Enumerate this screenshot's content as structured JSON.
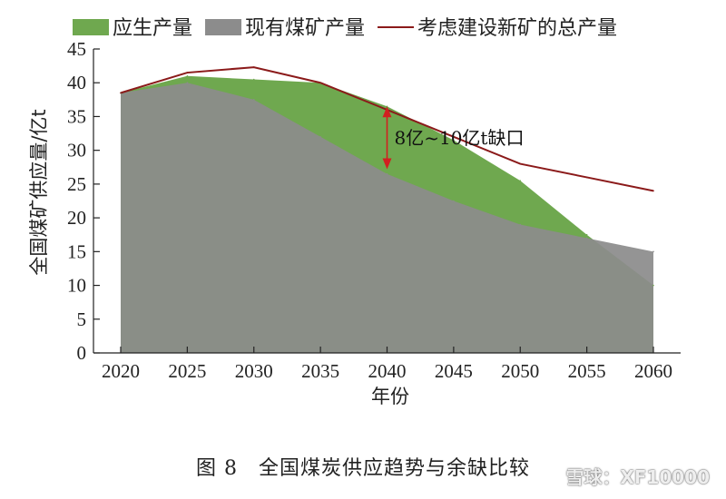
{
  "colors": {
    "required": "#6fa84f",
    "existing": "#8c8c8c",
    "total": "#8b1a1a",
    "annotation": "#d12020",
    "axis": "#222222"
  },
  "chart_data": {
    "type": "area",
    "xlabel": "年份",
    "ylabel": "全国煤矿供应量/亿t",
    "x": [
      2020,
      2025,
      2030,
      2035,
      2040,
      2045,
      2050,
      2055,
      2060
    ],
    "ylim": [
      0,
      45
    ],
    "yticks": [
      0,
      5,
      10,
      15,
      20,
      25,
      30,
      35,
      40,
      45
    ],
    "series": [
      {
        "name": "应生产量",
        "kind": "area",
        "color": "#6fa84f",
        "values": [
          38.5,
          41,
          40.5,
          40,
          36.5,
          31.5,
          25.5,
          17.5,
          10
        ]
      },
      {
        "name": "现有煤矿产量",
        "kind": "area",
        "color": "#8c8c8c",
        "values": [
          38.5,
          40,
          37.5,
          32,
          26.5,
          22.5,
          19,
          17,
          15
        ]
      },
      {
        "name": "考虑建设新矿的总产量",
        "kind": "line",
        "color": "#8b1a1a",
        "values": [
          38.5,
          41.5,
          42.3,
          40,
          36,
          32,
          28,
          26,
          24
        ]
      }
    ],
    "annotation": {
      "text": "8亿~10亿t缺口",
      "x": 2040,
      "y_top": 36.5,
      "y_bottom": 27.2
    },
    "legend": "top"
  },
  "caption": "图 8　全国煤炭供应趋势与余缺比较",
  "watermark": "雪球：XF10000"
}
